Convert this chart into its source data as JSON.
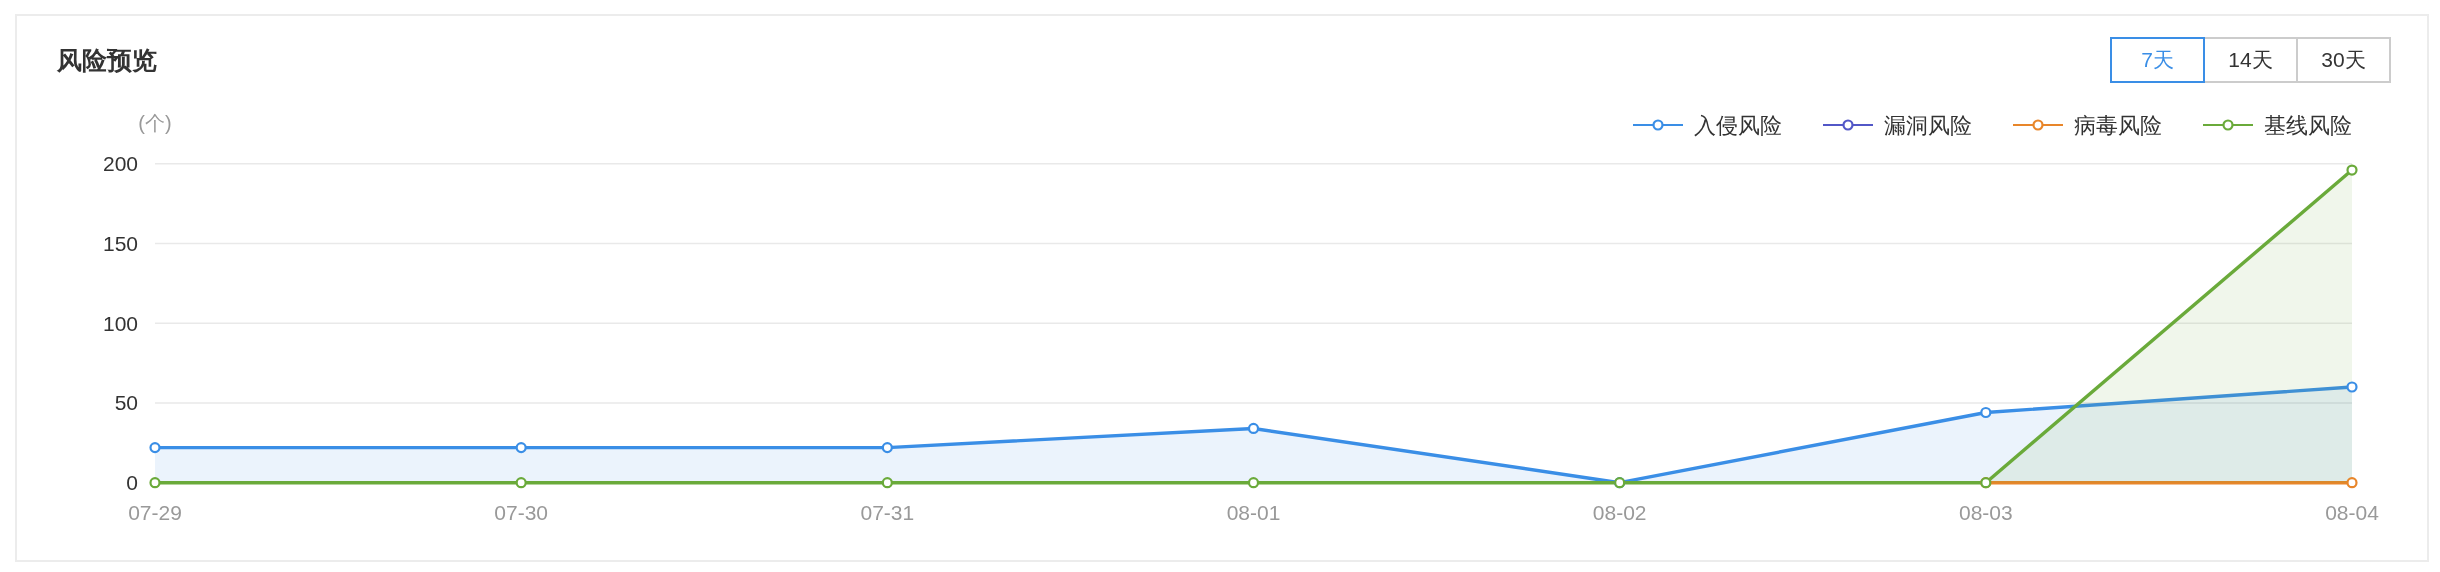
{
  "chart_data": {
    "type": "area",
    "title": "风险预览",
    "ylabel": "(个)",
    "categories": [
      "07-29",
      "07-30",
      "07-31",
      "08-01",
      "08-02",
      "08-03",
      "08-04"
    ],
    "series": [
      {
        "name": "入侵风险",
        "color": "#3a8ee6",
        "values": [
          22,
          22,
          22,
          34,
          0,
          44,
          60
        ]
      },
      {
        "name": "漏洞风险",
        "color": "#5257c7",
        "type": "line",
        "values": [
          null,
          null,
          null,
          null,
          null,
          null,
          null
        ]
      },
      {
        "name": "病毒风险",
        "color": "#e8862a",
        "type": "line",
        "values": [
          null,
          null,
          null,
          null,
          null,
          0,
          0
        ]
      },
      {
        "name": "基线风险",
        "color": "#6aaa3a",
        "values": [
          0,
          0,
          0,
          0,
          0,
          0,
          196
        ]
      }
    ],
    "ylim": [
      0,
      200
    ],
    "yticks": [
      0,
      50,
      100,
      150,
      200
    ],
    "grid": "y",
    "legend": "top right",
    "marker": "circle",
    "annotations": [
      "7天",
      "14天",
      "30天"
    ]
  }
}
